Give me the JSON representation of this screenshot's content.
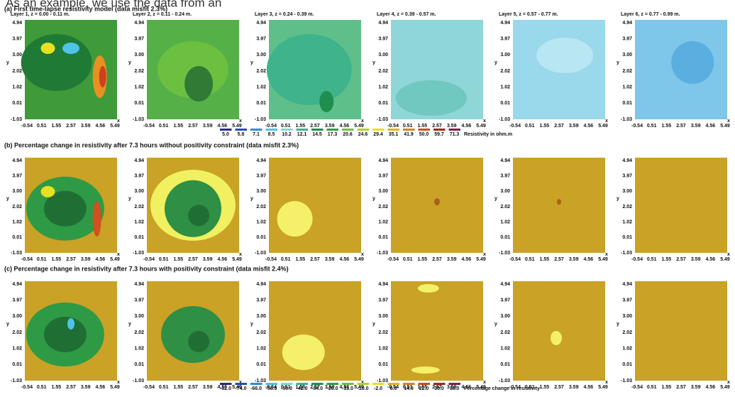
{
  "caption_fragment": "As an example, we use the data from an",
  "rows": [
    {
      "title": "(a) First time-lapse resistivity model (data misfit 2.3%)"
    },
    {
      "title": "(b) Percentage change in resistivity after 7.3 hours without positivity constraint (data misfit 2.3%)"
    },
    {
      "title": "(c) Percentage change in resistivity after 7.3 hours with positivity constraint (data misfit 2.4%)"
    }
  ],
  "layer_titles": [
    "Layer 1, z = 0.00 - 0.11 m.",
    "Layer 2, z = 0.11 - 0.24 m.",
    "Layer 3, z = 0.24 - 0.39 m.",
    "Layer 4, z = 0.39 - 0.57 m.",
    "Layer 5, z = 0.57 - 0.77 m.",
    "Layer 6, z = 0.77 - 0.99 m."
  ],
  "y_ticks": [
    "4.94",
    "3.97",
    "3.00",
    "2.02",
    "1.02",
    "0.01",
    "-1.03"
  ],
  "x_ticks": [
    "-0.54",
    "0.51",
    "1.55",
    "2.57",
    "3.59",
    "4.56",
    "5.49"
  ],
  "axis_x": "x",
  "axis_y": "y",
  "colorbars": [
    {
      "labels": [
        "5.0",
        "5.8",
        "7.1",
        "8.5",
        "10.2",
        "12.1",
        "14.5",
        "17.3",
        "20.6",
        "24.6",
        "29.4",
        "35.1",
        "41.9",
        "50.0",
        "59.7",
        "71.3"
      ],
      "title": "Resistivity in ohm.m"
    },
    {
      "labels": [
        "-82.0",
        "-74.0",
        "-66.0",
        "-58.0",
        "-50.0",
        "-42.0",
        "-34.0",
        "-26.0",
        "-18.0",
        "-10.0",
        "-2.0",
        "6.0",
        "14.0",
        "22.0",
        "30.0",
        "38.0"
      ],
      "title": "Percentage change in resistivity"
    }
  ]
}
